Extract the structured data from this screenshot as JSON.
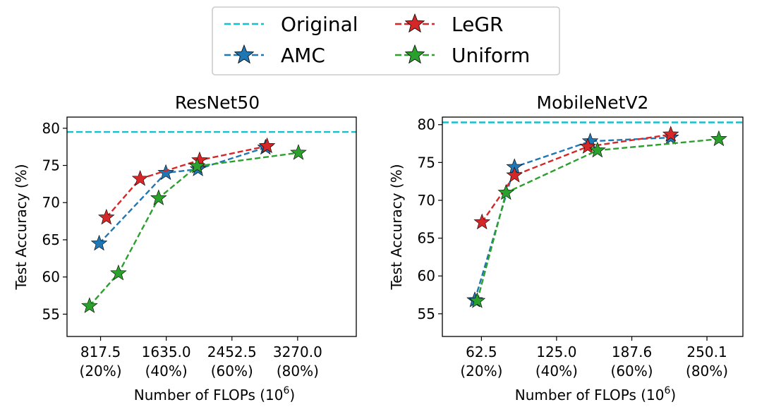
{
  "legend": {
    "entries": [
      {
        "label": "Original",
        "color": "#17becf",
        "marker": "none"
      },
      {
        "label": "AMC",
        "color": "#1f77b4",
        "marker": "star"
      },
      {
        "label": "LeGR",
        "color": "#d62728",
        "marker": "star"
      },
      {
        "label": "Uniform",
        "color": "#2ca02c",
        "marker": "star"
      }
    ]
  },
  "chart_data": [
    {
      "type": "line",
      "title": "ResNet50",
      "xlabel": "Number of FLOPs (10",
      "xlabel_sup": "6",
      "xlabel_close": ")",
      "ylabel": "Test Accuracy (%)",
      "xlim": [
        400,
        4000
      ],
      "ylim": [
        52,
        81.5
      ],
      "xticks": [
        {
          "value": 817.5,
          "label": "817.5",
          "sub": "(20%)"
        },
        {
          "value": 1635.0,
          "label": "1635.0",
          "sub": "(40%)"
        },
        {
          "value": 2452.5,
          "label": "2452.5",
          "sub": "(60%)"
        },
        {
          "value": 3270.0,
          "label": "3270.0",
          "sub": "(80%)"
        }
      ],
      "yticks": [
        55,
        60,
        65,
        70,
        75,
        80
      ],
      "original": 79.5,
      "series": [
        {
          "name": "AMC",
          "color": "#1f77b4",
          "x": [
            800,
            1630,
            2030,
            2870
          ],
          "y": [
            64.5,
            74.0,
            74.5,
            77.4
          ]
        },
        {
          "name": "LeGR",
          "color": "#d62728",
          "x": [
            890,
            1310,
            2050,
            2890
          ],
          "y": [
            68.0,
            73.2,
            75.7,
            77.6
          ]
        },
        {
          "name": "Uniform",
          "color": "#2ca02c",
          "x": [
            680,
            1040,
            1540,
            2020,
            3280
          ],
          "y": [
            56.1,
            60.5,
            70.6,
            74.9,
            76.7
          ]
        }
      ]
    },
    {
      "type": "line",
      "title": "MobileNetV2",
      "xlabel": "Number of FLOPs (10",
      "xlabel_sup": "6",
      "xlabel_close": ")",
      "ylabel": "Test Accuracy (%)",
      "xlim": [
        30,
        280
      ],
      "ylim": [
        52,
        81.0
      ],
      "xticks": [
        {
          "value": 62.5,
          "label": "62.5",
          "sub": "(20%)"
        },
        {
          "value": 125.0,
          "label": "125.0",
          "sub": "(40%)"
        },
        {
          "value": 187.6,
          "label": "187.6",
          "sub": "(60%)"
        },
        {
          "value": 250.1,
          "label": "250.1",
          "sub": "(80%)"
        }
      ],
      "yticks": [
        55,
        60,
        65,
        70,
        75,
        80
      ],
      "original": 80.3,
      "series": [
        {
          "name": "AMC",
          "color": "#1f77b4",
          "x": [
            57,
            90,
            153,
            220
          ],
          "y": [
            56.8,
            74.4,
            77.8,
            78.3
          ]
        },
        {
          "name": "LeGR",
          "color": "#d62728",
          "x": [
            63,
            90,
            151,
            220
          ],
          "y": [
            67.1,
            73.3,
            77.1,
            78.7
          ]
        },
        {
          "name": "Uniform",
          "color": "#2ca02c",
          "x": [
            59,
            83,
            159,
            260
          ],
          "y": [
            56.7,
            71.0,
            76.6,
            78.1
          ]
        }
      ]
    }
  ]
}
